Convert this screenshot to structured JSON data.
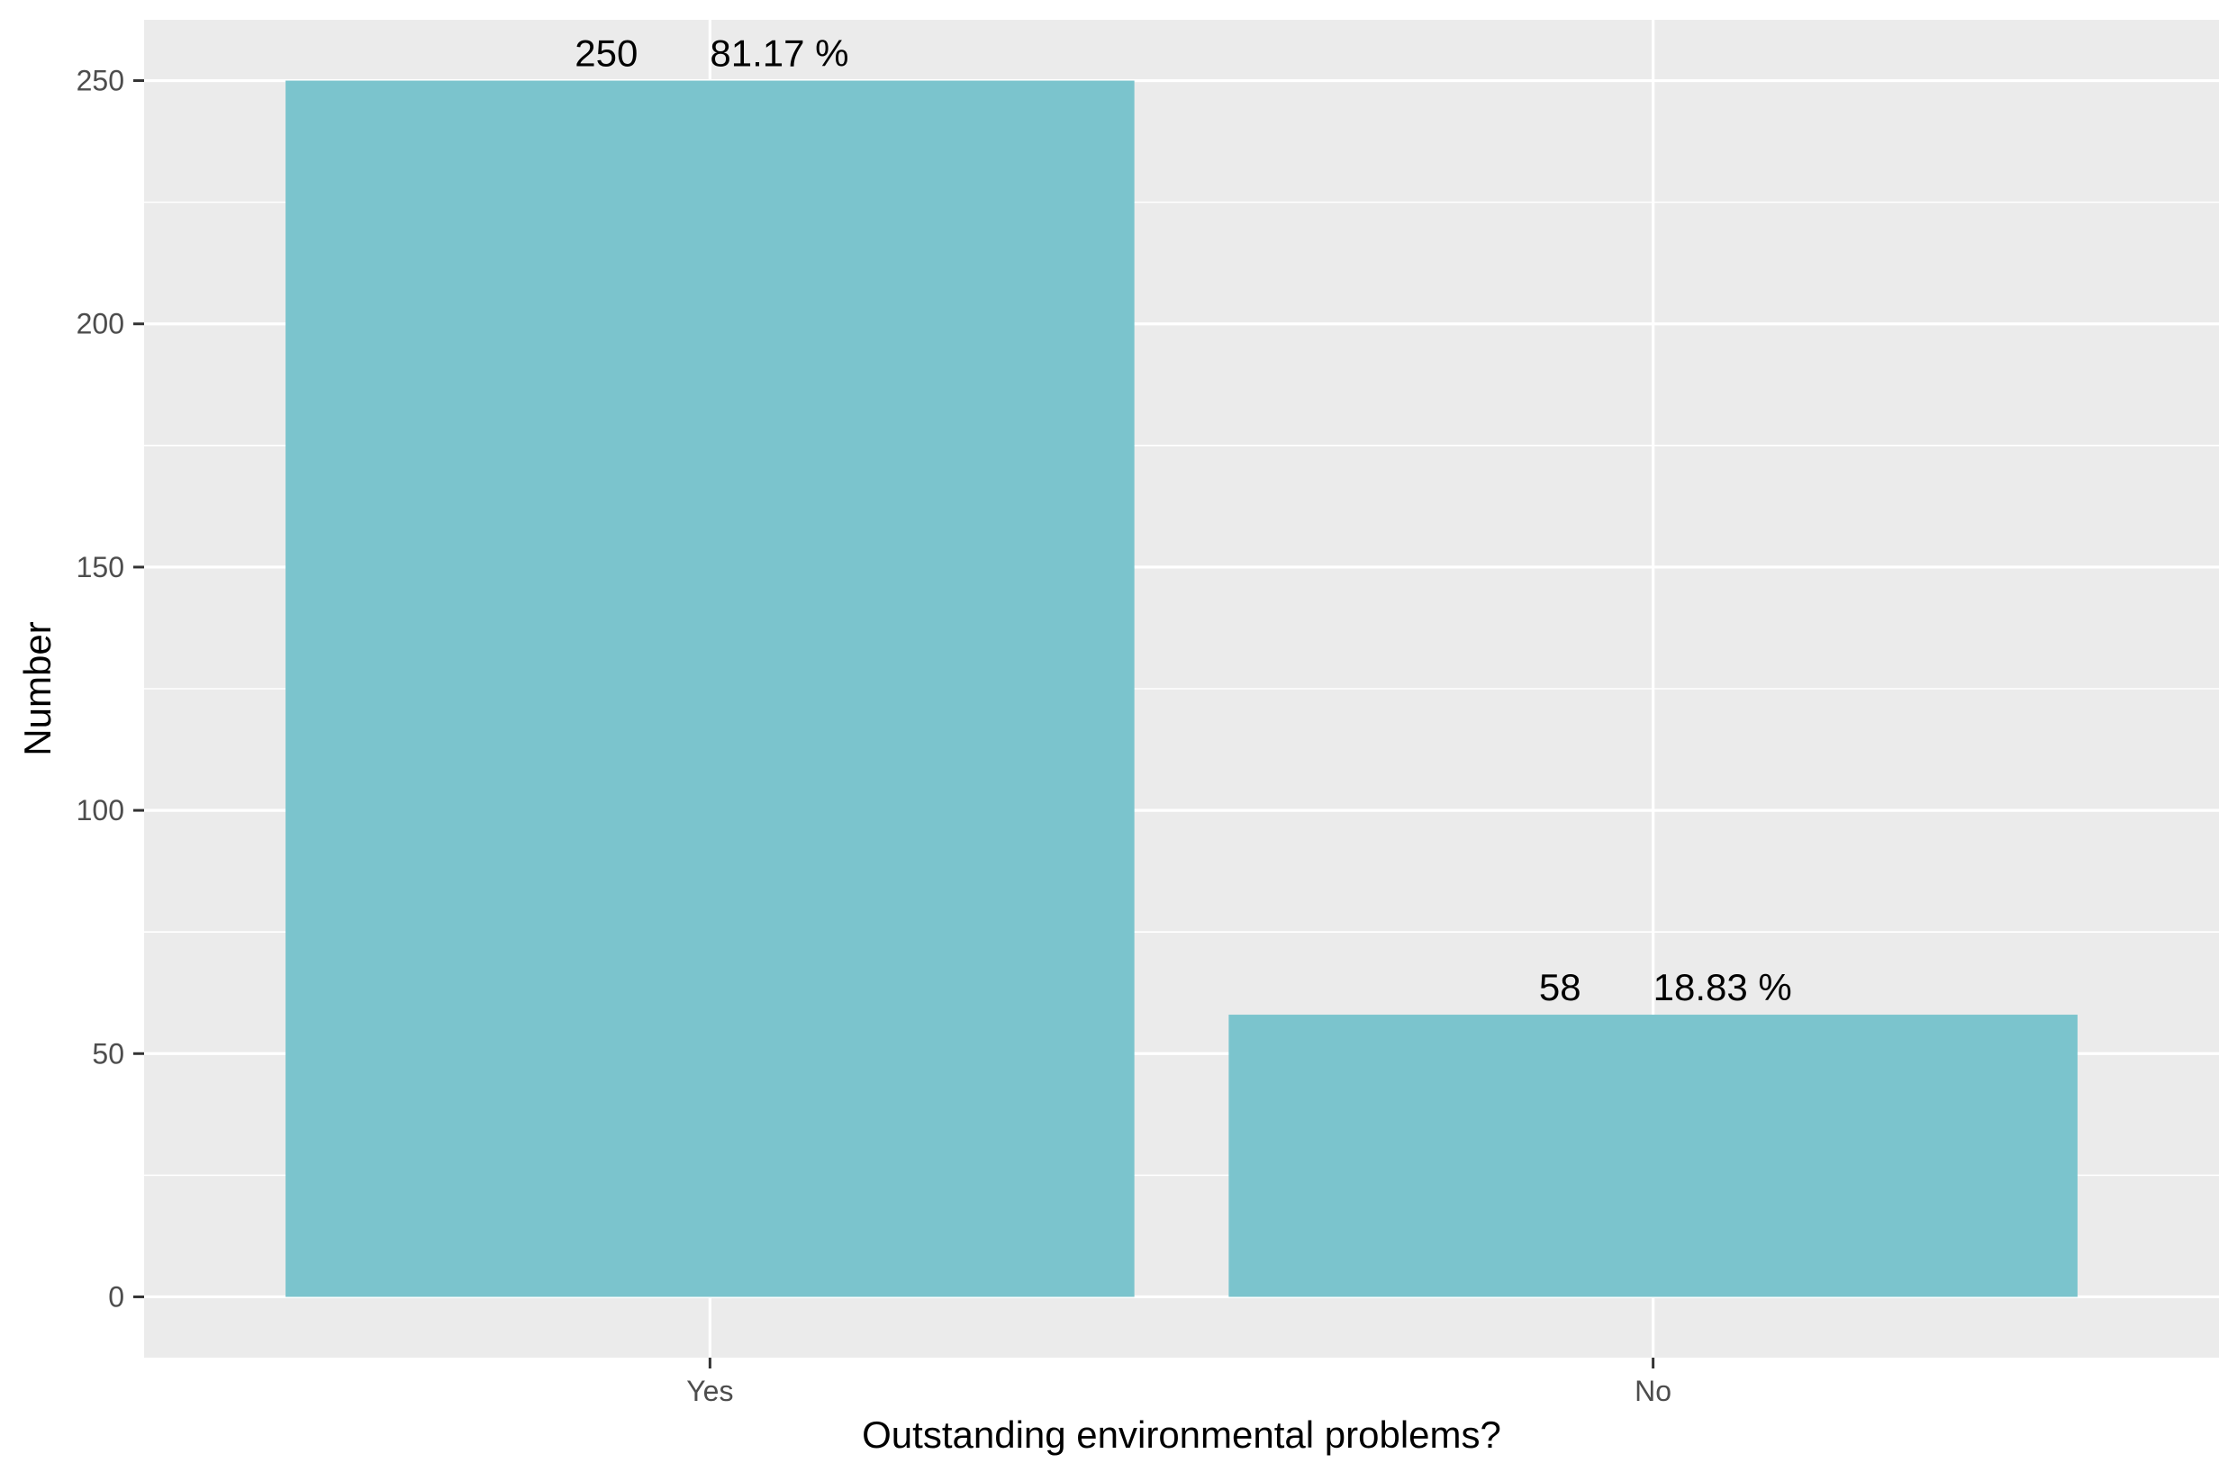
{
  "chart_data": {
    "type": "bar",
    "categories": [
      "Yes",
      "No"
    ],
    "values": [
      250,
      58
    ],
    "percent_labels": [
      "81.17 %",
      "18.83 %"
    ],
    "count_labels": [
      "250",
      "58"
    ],
    "xlabel": "Outstanding environmental problems?",
    "ylabel": "Number",
    "ylim": [
      -12.5,
      262.5
    ],
    "yticks": [
      0,
      50,
      100,
      150,
      200,
      250
    ],
    "ytick_labels": [
      "0",
      "50",
      "100",
      "150",
      "200",
      "250"
    ],
    "grid": true,
    "legend": "none",
    "colors": {
      "bar": "#7BC4CD",
      "panel": "#EBEBEB",
      "grid": "#FFFFFF",
      "tick_text": "#4D4D4D",
      "tick_mark": "#333333",
      "title_text": "#000000"
    }
  }
}
